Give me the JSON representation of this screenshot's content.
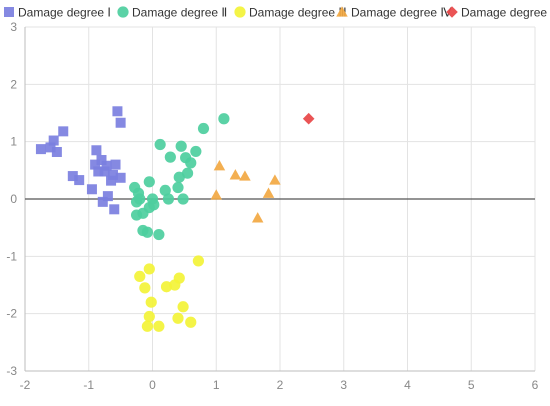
{
  "chart_data": {
    "type": "scatter",
    "title": "",
    "xlabel": "",
    "ylabel": "",
    "xlim": [
      -2,
      6
    ],
    "ylim": [
      -3,
      3
    ],
    "xticks": [
      -2,
      -1,
      0,
      1,
      2,
      3,
      4,
      5,
      6
    ],
    "yticks": [
      -3,
      -2,
      -1,
      0,
      1,
      2,
      3
    ],
    "grid": true,
    "legend_position": "top",
    "series": [
      {
        "name": "Damage degree Ⅰ",
        "marker": "square",
        "color": "#7B7FE0",
        "points": [
          [
            -1.75,
            0.87
          ],
          [
            -1.6,
            0.9
          ],
          [
            -1.55,
            1.02
          ],
          [
            -1.5,
            0.82
          ],
          [
            -1.4,
            1.18
          ],
          [
            -1.25,
            0.4
          ],
          [
            -1.15,
            0.33
          ],
          [
            -0.95,
            0.17
          ],
          [
            -0.9,
            0.6
          ],
          [
            -0.88,
            0.85
          ],
          [
            -0.85,
            0.48
          ],
          [
            -0.8,
            0.68
          ],
          [
            -0.78,
            -0.05
          ],
          [
            -0.75,
            0.48
          ],
          [
            -0.72,
            0.58
          ],
          [
            -0.7,
            0.05
          ],
          [
            -0.65,
            0.32
          ],
          [
            -0.62,
            0.42
          ],
          [
            -0.58,
            0.6
          ],
          [
            -0.6,
            -0.18
          ],
          [
            -0.55,
            1.53
          ],
          [
            -0.5,
            1.33
          ],
          [
            -0.5,
            0.37
          ]
        ]
      },
      {
        "name": "Damage degree Ⅱ",
        "marker": "circle",
        "color": "#4DCE9E",
        "points": [
          [
            -0.28,
            0.2
          ],
          [
            -0.25,
            -0.05
          ],
          [
            -0.22,
            0.1
          ],
          [
            -0.2,
            0.0
          ],
          [
            -0.15,
            -0.25
          ],
          [
            -0.25,
            -0.28
          ],
          [
            -0.15,
            -0.55
          ],
          [
            -0.08,
            -0.58
          ],
          [
            -0.05,
            0.3
          ],
          [
            -0.05,
            -0.15
          ],
          [
            0.0,
            0.0
          ],
          [
            0.02,
            -0.1
          ],
          [
            0.1,
            -0.62
          ],
          [
            0.12,
            0.95
          ],
          [
            0.2,
            0.15
          ],
          [
            0.25,
            0.0
          ],
          [
            0.28,
            0.73
          ],
          [
            0.4,
            0.2
          ],
          [
            0.42,
            0.38
          ],
          [
            0.45,
            0.92
          ],
          [
            0.48,
            0.0
          ],
          [
            0.52,
            0.72
          ],
          [
            0.55,
            0.45
          ],
          [
            0.6,
            0.63
          ],
          [
            0.68,
            0.83
          ],
          [
            0.8,
            1.23
          ],
          [
            1.12,
            1.4
          ]
        ]
      },
      {
        "name": "Damage degree Ⅲ",
        "marker": "circle",
        "color": "#F3F337",
        "points": [
          [
            -0.2,
            -1.35
          ],
          [
            -0.12,
            -1.55
          ],
          [
            -0.05,
            -1.22
          ],
          [
            -0.05,
            -2.05
          ],
          [
            -0.02,
            -1.8
          ],
          [
            -0.08,
            -2.22
          ],
          [
            0.1,
            -2.22
          ],
          [
            0.22,
            -1.53
          ],
          [
            0.35,
            -1.5
          ],
          [
            0.42,
            -1.38
          ],
          [
            0.4,
            -2.08
          ],
          [
            0.48,
            -1.88
          ],
          [
            0.6,
            -2.15
          ],
          [
            0.72,
            -1.08
          ]
        ]
      },
      {
        "name": "Damage degree Ⅳ",
        "marker": "triangle",
        "color": "#F2A842",
        "points": [
          [
            1.0,
            0.07
          ],
          [
            1.05,
            0.58
          ],
          [
            1.3,
            0.42
          ],
          [
            1.45,
            0.4
          ],
          [
            1.65,
            -0.33
          ],
          [
            1.82,
            0.1
          ],
          [
            1.92,
            0.33
          ]
        ]
      },
      {
        "name": "Damage degree Ⅴ",
        "marker": "diamond",
        "color": "#E84547",
        "points": [
          [
            2.45,
            1.4
          ]
        ]
      }
    ]
  }
}
